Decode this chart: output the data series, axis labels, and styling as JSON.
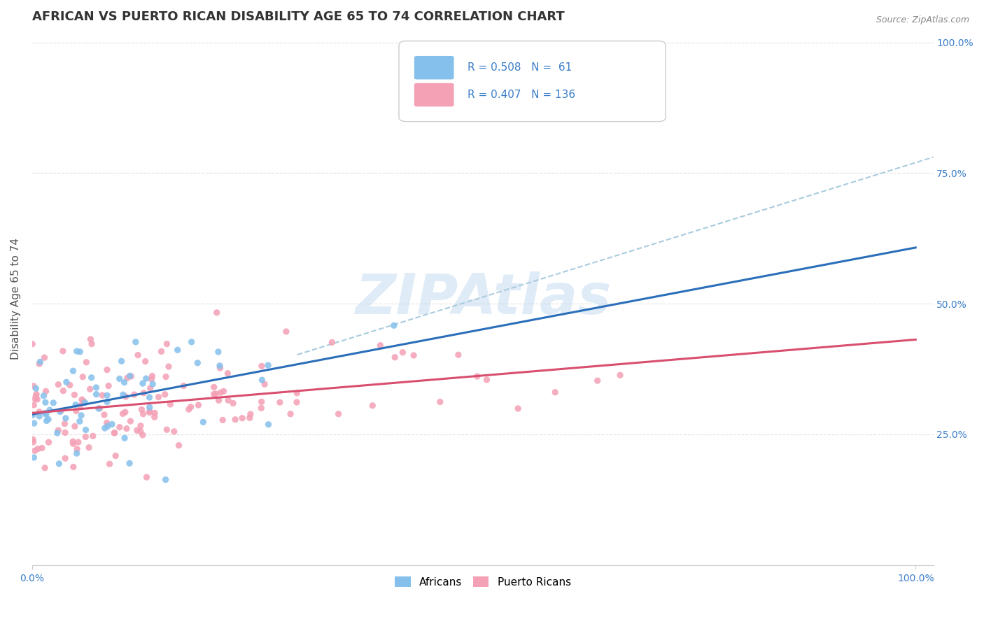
{
  "title": "AFRICAN VS PUERTO RICAN DISABILITY AGE 65 TO 74 CORRELATION CHART",
  "source_text": "Source: ZipAtlas.com",
  "ylabel": "Disability Age 65 to 74",
  "african_color": "#85C0EC",
  "puerto_rican_color": "#F4A0B5",
  "african_line_color": "#2B6FBA",
  "puerto_rican_line_color": "#D94F6F",
  "dashed_line_color": "#AACCDD",
  "legend_R_african": "0.508",
  "legend_N_african": "61",
  "legend_R_puerto": "0.407",
  "legend_N_puerto": "136",
  "legend_label_african": "Africans",
  "legend_label_puerto": "Puerto Ricans",
  "watermark_text": "ZIPAtlas",
  "background_color": "#FFFFFF",
  "grid_color": "#DDDDDD",
  "title_fontsize": 13,
  "axis_label_fontsize": 11,
  "tick_fontsize": 10,
  "african_n": 61,
  "puerto_rican_n": 136
}
